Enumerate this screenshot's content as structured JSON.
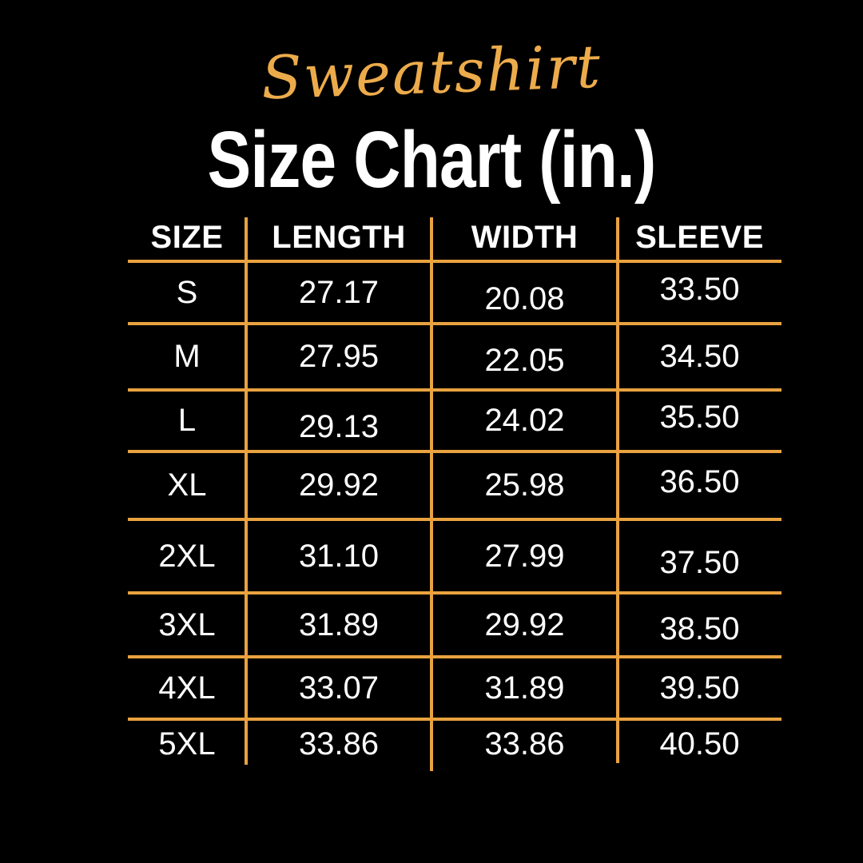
{
  "colors": {
    "background": "#000000",
    "accent": "#E9A23F",
    "script": "#ECAB4B",
    "text": "#FFFFFF"
  },
  "title": {
    "script": "Sweatshirt",
    "main": "Size Chart (in.)"
  },
  "table": {
    "headers": [
      "SIZE",
      "LENGTH",
      "WIDTH",
      "SLEEVE"
    ],
    "rows": [
      {
        "size": "S",
        "length": "27.17",
        "width": "20.08",
        "sleeve": "33.50"
      },
      {
        "size": "M",
        "length": "27.95",
        "width": "22.05",
        "sleeve": "34.50"
      },
      {
        "size": "L",
        "length": "29.13",
        "width": "24.02",
        "sleeve": "35.50"
      },
      {
        "size": "XL",
        "length": "29.92",
        "width": "25.98",
        "sleeve": "36.50"
      },
      {
        "size": "2XL",
        "length": "31.10",
        "width": "27.99",
        "sleeve": "37.50"
      },
      {
        "size": "3XL",
        "length": "31.89",
        "width": "29.92",
        "sleeve": "38.50"
      },
      {
        "size": "4XL",
        "length": "33.07",
        "width": "31.89",
        "sleeve": "39.50"
      },
      {
        "size": "5XL",
        "length": "33.86",
        "width": "33.86",
        "sleeve": "40.50"
      }
    ]
  },
  "chart_data": {
    "type": "table",
    "title": "Sweatshirt Size Chart (in.)",
    "units": "inches",
    "columns": [
      "SIZE",
      "LENGTH",
      "WIDTH",
      "SLEEVE"
    ],
    "rows": [
      [
        "S",
        27.17,
        20.08,
        33.5
      ],
      [
        "M",
        27.95,
        22.05,
        34.5
      ],
      [
        "L",
        29.13,
        24.02,
        35.5
      ],
      [
        "XL",
        29.92,
        25.98,
        36.5
      ],
      [
        "2XL",
        31.1,
        27.99,
        37.5
      ],
      [
        "3XL",
        31.89,
        29.92,
        38.5
      ],
      [
        "4XL",
        33.07,
        31.89,
        39.5
      ],
      [
        "5XL",
        33.86,
        33.86,
        40.5
      ]
    ]
  }
}
